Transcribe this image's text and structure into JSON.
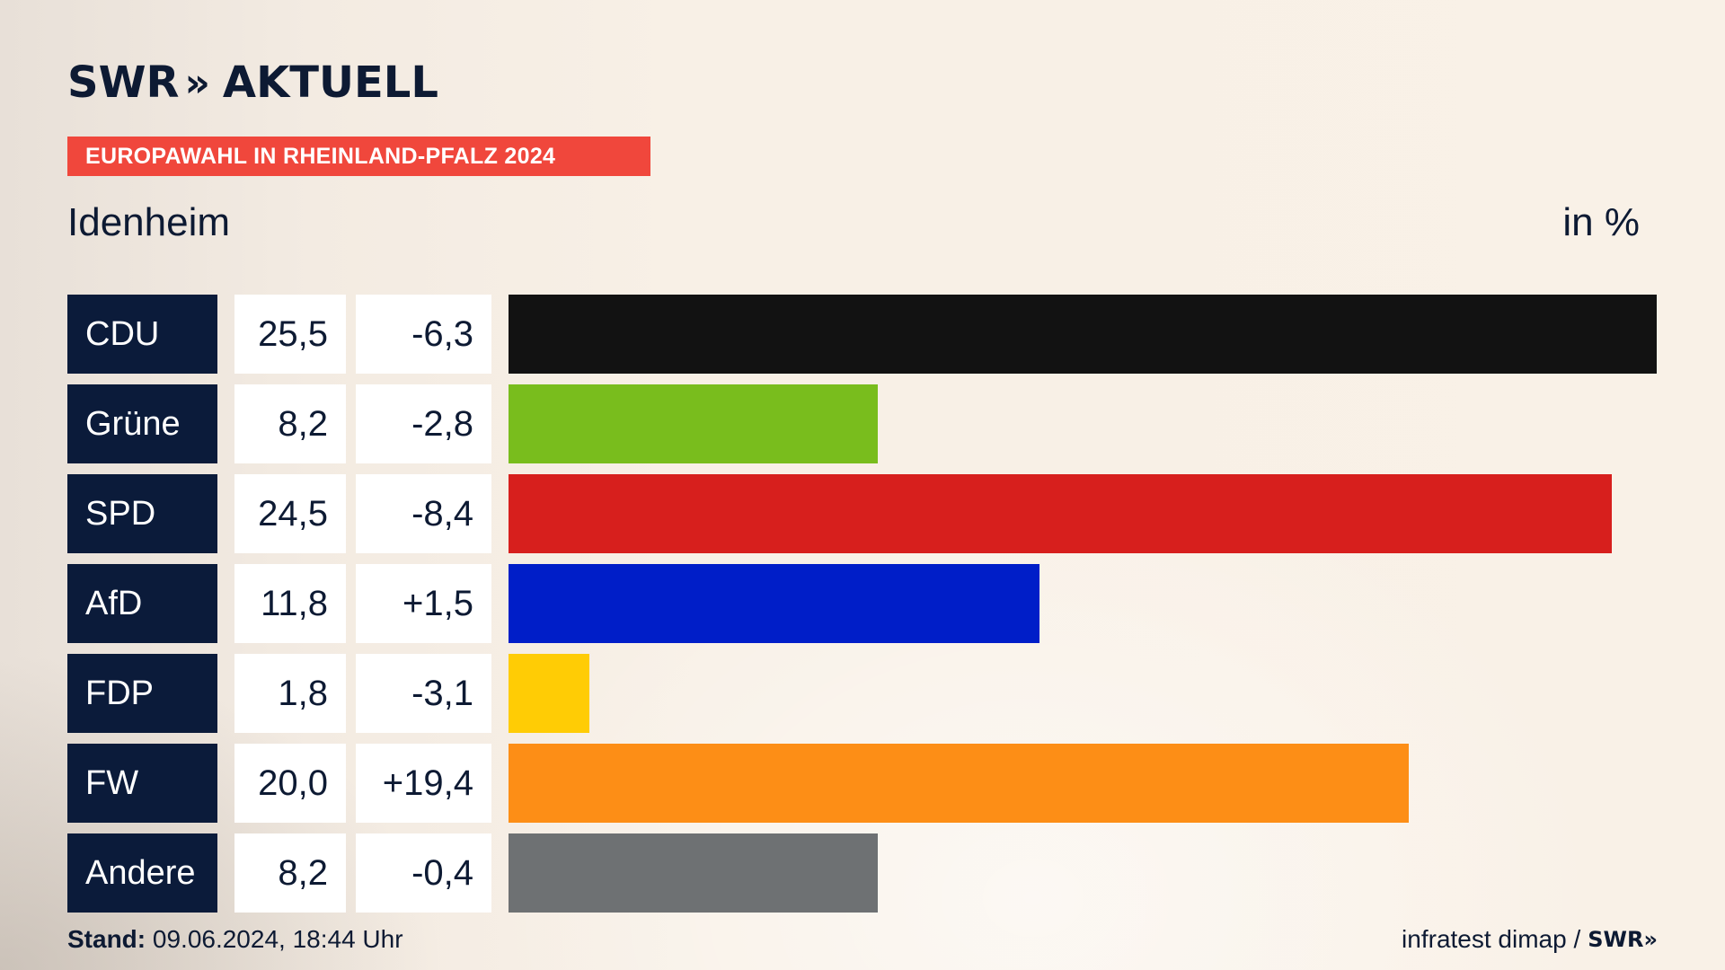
{
  "header": {
    "logo_text": "SWR",
    "logo_chevrons": "»",
    "logo_suffix": "AKTUELL",
    "banner": "EUROPAWAHL IN RHEINLAND-PFALZ 2024"
  },
  "chart_data": {
    "type": "bar",
    "title": "Idenheim",
    "unit_label": "in %",
    "categories": [
      "CDU",
      "Grüne",
      "SPD",
      "AfD",
      "FDP",
      "FW",
      "Andere"
    ],
    "values": [
      25.5,
      8.2,
      24.5,
      11.8,
      1.8,
      20.0,
      8.2
    ],
    "value_labels": [
      "25,5",
      "8,2",
      "24,5",
      "11,8",
      "1,8",
      "20,0",
      "8,2"
    ],
    "diff_labels": [
      "-6,3",
      "-2,8",
      "-8,4",
      "+1,5",
      "-3,1",
      "+19,4",
      "-0,4"
    ],
    "colors": [
      "#121212",
      "#79bd1d",
      "#d71f1d",
      "#001ec8",
      "#ffcc05",
      "#fd8e16",
      "#6e7173"
    ],
    "xlim": [
      0,
      25.5
    ]
  },
  "footer": {
    "stand_label": "Stand:",
    "stand_value": " 09.06.2024, 18:44 Uhr",
    "source": "infratest dimap /",
    "source_logo": "SWR»"
  }
}
